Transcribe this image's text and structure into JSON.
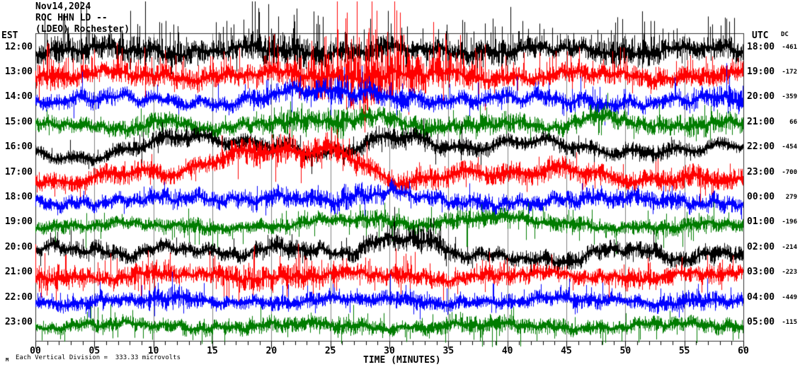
{
  "header": {
    "date": "Nov14,2024",
    "station": "ROC HHN LD --",
    "network": "(LDEO) Rochester)"
  },
  "axes": {
    "left_label": "EST",
    "right_label": "UTC",
    "dc_label": "DC",
    "x_title": "TIME (MINUTES)",
    "x_ticks": [
      "00",
      "05",
      "10",
      "15",
      "20",
      "25",
      "30",
      "35",
      "40",
      "45",
      "50",
      "55",
      "60"
    ]
  },
  "footer": {
    "marker": "M",
    "scale_text": "Each Vertical Division =  333.33 microvolts"
  },
  "colors": {
    "black": "#000000",
    "red": "#ff0000",
    "blue": "#0000ff",
    "green": "#007c00",
    "grid": "#808080",
    "border": "#303030",
    "ticks": "#000000"
  },
  "chart_data": {
    "type": "line",
    "title": "Helicorder ROC HHN LD (LDEO) Rochester - Nov14,2024",
    "xlabel": "TIME (MINUTES)",
    "x_range": [
      0,
      60
    ],
    "minutes_per_line": 60,
    "vertical_division_microvolts": 333.33,
    "grid": "vertical gray lines every 5 minutes",
    "legend_position": "none",
    "rows": [
      {
        "est": "12:00",
        "utc": "18:00",
        "dc": "-461",
        "color": "#000000",
        "seed": 11,
        "noise": 10,
        "wander": 8,
        "spikeP": 0.12,
        "spikeUp": 38,
        "upBias": 0.72,
        "dnScale": 0.55,
        "glitchP": 0.004,
        "glitchLen": 85,
        "bursts": [
          {
            "m": 3,
            "w": 2.5,
            "g": 0.8
          },
          {
            "m": 8,
            "w": 2,
            "g": 0.5
          },
          {
            "m": 12,
            "w": 2.5,
            "g": 0.7
          },
          {
            "m": 21,
            "w": 2.5,
            "g": 1.5
          },
          {
            "m": 29,
            "w": 2,
            "g": 0.5
          },
          {
            "m": 34,
            "w": 2,
            "g": 0.4
          },
          {
            "m": 40,
            "w": 2.5,
            "g": 0.6
          },
          {
            "m": 50,
            "w": 2.5,
            "g": 0.9
          },
          {
            "m": 58,
            "w": 2,
            "g": 0.5
          }
        ]
      },
      {
        "est": "13:00",
        "utc": "19:00",
        "dc": "-172",
        "color": "#ff0000",
        "seed": 22,
        "noise": 10,
        "wander": 8,
        "spikeP": 0.12,
        "spikeUp": 32,
        "upBias": 0.8,
        "dnScale": 0.6,
        "glitchP": 0.0015,
        "glitchLen": 60,
        "bursts": [
          {
            "m": 1,
            "w": 2,
            "g": 0.8
          },
          {
            "m": 9,
            "w": 1.8,
            "g": 0.5
          },
          {
            "m": 14,
            "w": 2,
            "g": 0.45
          },
          {
            "m": 21,
            "w": 2,
            "g": 0.5
          },
          {
            "m": 28,
            "w": 3.2,
            "g": 3.6
          },
          {
            "m": 36,
            "w": 2.2,
            "g": 0.9
          },
          {
            "m": 45,
            "w": 2.5,
            "g": 0.35
          },
          {
            "m": 51,
            "w": 1.8,
            "g": 0.5
          },
          {
            "m": 58,
            "w": 2,
            "g": 0.4
          }
        ]
      },
      {
        "est": "14:00",
        "utc": "20:00",
        "dc": "-359",
        "color": "#0000ff",
        "seed": 33,
        "noise": 9,
        "wander": 9,
        "spikeP": 0.06,
        "spikeUp": 24,
        "upBias": 0.6,
        "dnScale": 0.8,
        "bursts": [
          {
            "m": 5,
            "w": 2,
            "g": 0.3
          },
          {
            "m": 20,
            "w": 2,
            "g": 0.5
          },
          {
            "m": 26,
            "w": 1.5,
            "g": 1.2
          },
          {
            "m": 31,
            "w": 2,
            "g": 0.55
          },
          {
            "m": 40,
            "w": 2,
            "g": 0.3
          },
          {
            "m": 47,
            "w": 2,
            "g": 0.4
          },
          {
            "m": 56,
            "w": 2,
            "g": 0.5
          },
          {
            "m": 59.5,
            "w": 1,
            "g": 0.9
          }
        ],
        "drift": [
          {
            "m": 28,
            "w": 4,
            "dy": 10
          },
          {
            "m": 21,
            "w": 2,
            "dy": 8
          }
        ]
      },
      {
        "est": "15:00",
        "utc": "21:00",
        "dc": "66",
        "color": "#007c00",
        "seed": 44,
        "noise": 10,
        "wander": 8,
        "spikeP": 0.06,
        "spikeUp": 20,
        "upBias": 0.5,
        "dnScale": 1,
        "bursts": [
          {
            "m": 10,
            "w": 2,
            "g": 0.35
          },
          {
            "m": 22,
            "w": 2,
            "g": 0.5
          },
          {
            "m": 26,
            "w": 2,
            "g": 0.7
          },
          {
            "m": 33,
            "w": 2,
            "g": 0.4
          },
          {
            "m": 39,
            "w": 2,
            "g": 0.5
          },
          {
            "m": 48,
            "w": 2,
            "g": 0.4
          },
          {
            "m": 56,
            "w": 2.5,
            "g": 0.5
          }
        ],
        "drift": [
          {
            "m": 26,
            "w": 3,
            "dy": 12
          },
          {
            "m": 48,
            "w": 3,
            "dy": 8
          }
        ]
      },
      {
        "est": "16:00",
        "utc": "22:00",
        "dc": "-454",
        "color": "#000000",
        "seed": 55,
        "noise": 8,
        "wander": 13,
        "slow": true,
        "spikeP": 0.05,
        "spikeUp": 20,
        "upBias": 0.5,
        "dnScale": 0.9,
        "glitchP": 0.0015,
        "glitchLen": 75,
        "bursts": [
          {
            "m": 12,
            "w": 2.5,
            "g": 0.6
          },
          {
            "m": 21,
            "w": 2,
            "g": 0.45
          },
          {
            "m": 30,
            "w": 2.5,
            "g": 0.8
          },
          {
            "m": 37,
            "w": 2,
            "g": 0.45
          },
          {
            "m": 46,
            "w": 2,
            "g": 0.35
          },
          {
            "m": 53,
            "w": 2,
            "g": 0.45
          }
        ],
        "drift": [
          {
            "m": 13,
            "w": 2.5,
            "dy": 18
          },
          {
            "m": 30,
            "w": 3,
            "dy": 22
          },
          {
            "m": 46,
            "w": 3,
            "dy": 10
          },
          {
            "m": 58,
            "w": 2,
            "dy": 10
          }
        ]
      },
      {
        "est": "17:00",
        "utc": "23:00",
        "dc": "-700",
        "color": "#ff0000",
        "seed": 66,
        "noise": 11,
        "wander": 13,
        "slow": true,
        "spikeP": 0.07,
        "spikeUp": 22,
        "upBias": 0.5,
        "dnScale": 1,
        "bursts": [
          {
            "m": 8,
            "w": 2,
            "g": 0.3
          },
          {
            "m": 20,
            "w": 3,
            "g": 0.9
          },
          {
            "m": 26,
            "w": 2,
            "g": 0.6
          },
          {
            "m": 33,
            "w": 2,
            "g": 0.5
          },
          {
            "m": 43,
            "w": 3,
            "g": 0.5
          },
          {
            "m": 55,
            "w": 3,
            "g": 0.4
          }
        ],
        "drift": [
          {
            "m": 21,
            "w": 4,
            "dy": 34
          },
          {
            "m": 26,
            "w": 2,
            "dy": 18
          },
          {
            "m": 9,
            "w": 2,
            "dy": 8
          }
        ]
      },
      {
        "est": "18:00",
        "utc": "00:00",
        "dc": "279",
        "color": "#0000ff",
        "seed": 77,
        "noise": 9,
        "wander": 8,
        "spikeP": 0.05,
        "spikeUp": 17,
        "upBias": 0.5,
        "dnScale": 1,
        "bursts": [
          {
            "m": 12,
            "w": 2,
            "g": 0.35
          },
          {
            "m": 19,
            "w": 2,
            "g": 0.5
          },
          {
            "m": 27,
            "w": 2.5,
            "g": 0.75
          },
          {
            "m": 38,
            "w": 2,
            "g": 0.4
          },
          {
            "m": 47,
            "w": 2,
            "g": 0.35
          },
          {
            "m": 55,
            "w": 3,
            "g": 0.4
          }
        ],
        "drift": [
          {
            "m": 21,
            "w": 2,
            "dy": 10
          },
          {
            "m": 30,
            "w": 2,
            "dy": 8
          }
        ]
      },
      {
        "est": "19:00",
        "utc": "01:00",
        "dc": "-196",
        "color": "#007c00",
        "seed": 88,
        "noise": 7,
        "wander": 6,
        "spikeP": 0.09,
        "spikeUp": 19,
        "upBias": 0.32,
        "dnScale": 1.25,
        "bursts": [
          {
            "m": 3,
            "w": 1.5,
            "g": 0.4
          },
          {
            "m": 13,
            "w": 1.5,
            "g": 0.7
          },
          {
            "m": 21,
            "w": 1.5,
            "g": 0.4
          },
          {
            "m": 29,
            "w": 2,
            "g": 0.8
          },
          {
            "m": 37,
            "w": 2.5,
            "g": 0.7
          },
          {
            "m": 45,
            "w": 2,
            "g": 0.5
          },
          {
            "m": 52,
            "w": 2,
            "g": 0.4
          },
          {
            "m": 57,
            "w": 2,
            "g": 0.5
          }
        ],
        "drift": [
          {
            "m": 38,
            "w": 3,
            "dy": 12
          },
          {
            "m": 28,
            "w": 3,
            "dy": 8
          }
        ]
      },
      {
        "est": "20:00",
        "utc": "02:00",
        "dc": "-214",
        "color": "#000000",
        "seed": 99,
        "noise": 9,
        "wander": 9,
        "spikeP": 0.06,
        "spikeUp": 20,
        "upBias": 0.55,
        "dnScale": 0.8,
        "glitchP": 0.002,
        "glitchLen": 90,
        "bursts": [
          {
            "m": 5,
            "w": 2,
            "g": 0.35
          },
          {
            "m": 21,
            "w": 2,
            "g": 0.5
          },
          {
            "m": 32,
            "w": 2.8,
            "g": 0.85
          },
          {
            "m": 44,
            "w": 2,
            "g": 0.3
          },
          {
            "m": 50,
            "w": 2.5,
            "g": 0.4
          },
          {
            "m": 57,
            "w": 2,
            "g": 0.35
          }
        ],
        "drift": [
          {
            "m": 32,
            "w": 3,
            "dy": 16
          },
          {
            "m": 41,
            "w": 4,
            "dy": -14
          },
          {
            "m": 57,
            "w": 3,
            "dy": -8
          }
        ]
      },
      {
        "est": "21:00",
        "utc": "03:00",
        "dc": "-223",
        "color": "#ff0000",
        "seed": 110,
        "noise": 9,
        "wander": 7,
        "spikeP": 0.1,
        "spikeUp": 26,
        "upBias": 0.6,
        "dnScale": 0.9,
        "bursts": [
          {
            "m": 1.5,
            "w": 1.8,
            "g": 1.1
          },
          {
            "m": 9,
            "w": 2,
            "g": 0.55
          },
          {
            "m": 17,
            "w": 1.8,
            "g": 0.7
          },
          {
            "m": 22,
            "w": 2.2,
            "g": 0.95
          },
          {
            "m": 31,
            "w": 2,
            "g": 0.55
          },
          {
            "m": 40,
            "w": 2.5,
            "g": 0.45
          },
          {
            "m": 51,
            "w": 2,
            "g": 0.5
          },
          {
            "m": 57,
            "w": 1.8,
            "g": 0.4
          }
        ]
      },
      {
        "est": "22:00",
        "utc": "04:00",
        "dc": "-449",
        "color": "#0000ff",
        "seed": 121,
        "noise": 8,
        "wander": 6,
        "spikeP": 0.08,
        "spikeUp": 20,
        "upBias": 0.65,
        "dnScale": 0.7,
        "bursts": [
          {
            "m": 4,
            "w": 2,
            "g": 0.3
          },
          {
            "m": 11.5,
            "w": 1.4,
            "g": 1.1
          },
          {
            "m": 22,
            "w": 2,
            "g": 0.4
          },
          {
            "m": 32,
            "w": 2,
            "g": 0.5
          },
          {
            "m": 41,
            "w": 2,
            "g": 0.3
          },
          {
            "m": 47,
            "w": 2,
            "g": 0.4
          },
          {
            "m": 56,
            "w": 2,
            "g": 0.55
          }
        ]
      },
      {
        "est": "23:00",
        "utc": "05:00",
        "dc": "-115",
        "color": "#007c00",
        "seed": 132,
        "noise": 7,
        "wander": 6,
        "spikeP": 0.09,
        "spikeUp": 18,
        "upBias": 0.35,
        "dnScale": 1.2,
        "bursts": [
          {
            "m": 7,
            "w": 2,
            "g": 0.35
          },
          {
            "m": 14,
            "w": 2,
            "g": 0.3
          },
          {
            "m": 20,
            "w": 2,
            "g": 0.55
          },
          {
            "m": 27,
            "w": 2,
            "g": 0.5
          },
          {
            "m": 38,
            "w": 3,
            "g": 0.65
          },
          {
            "m": 45,
            "w": 2,
            "g": 0.5
          },
          {
            "m": 52,
            "w": 2,
            "g": 0.45
          },
          {
            "m": 58,
            "w": 1.5,
            "g": 0.4
          }
        ]
      }
    ]
  }
}
